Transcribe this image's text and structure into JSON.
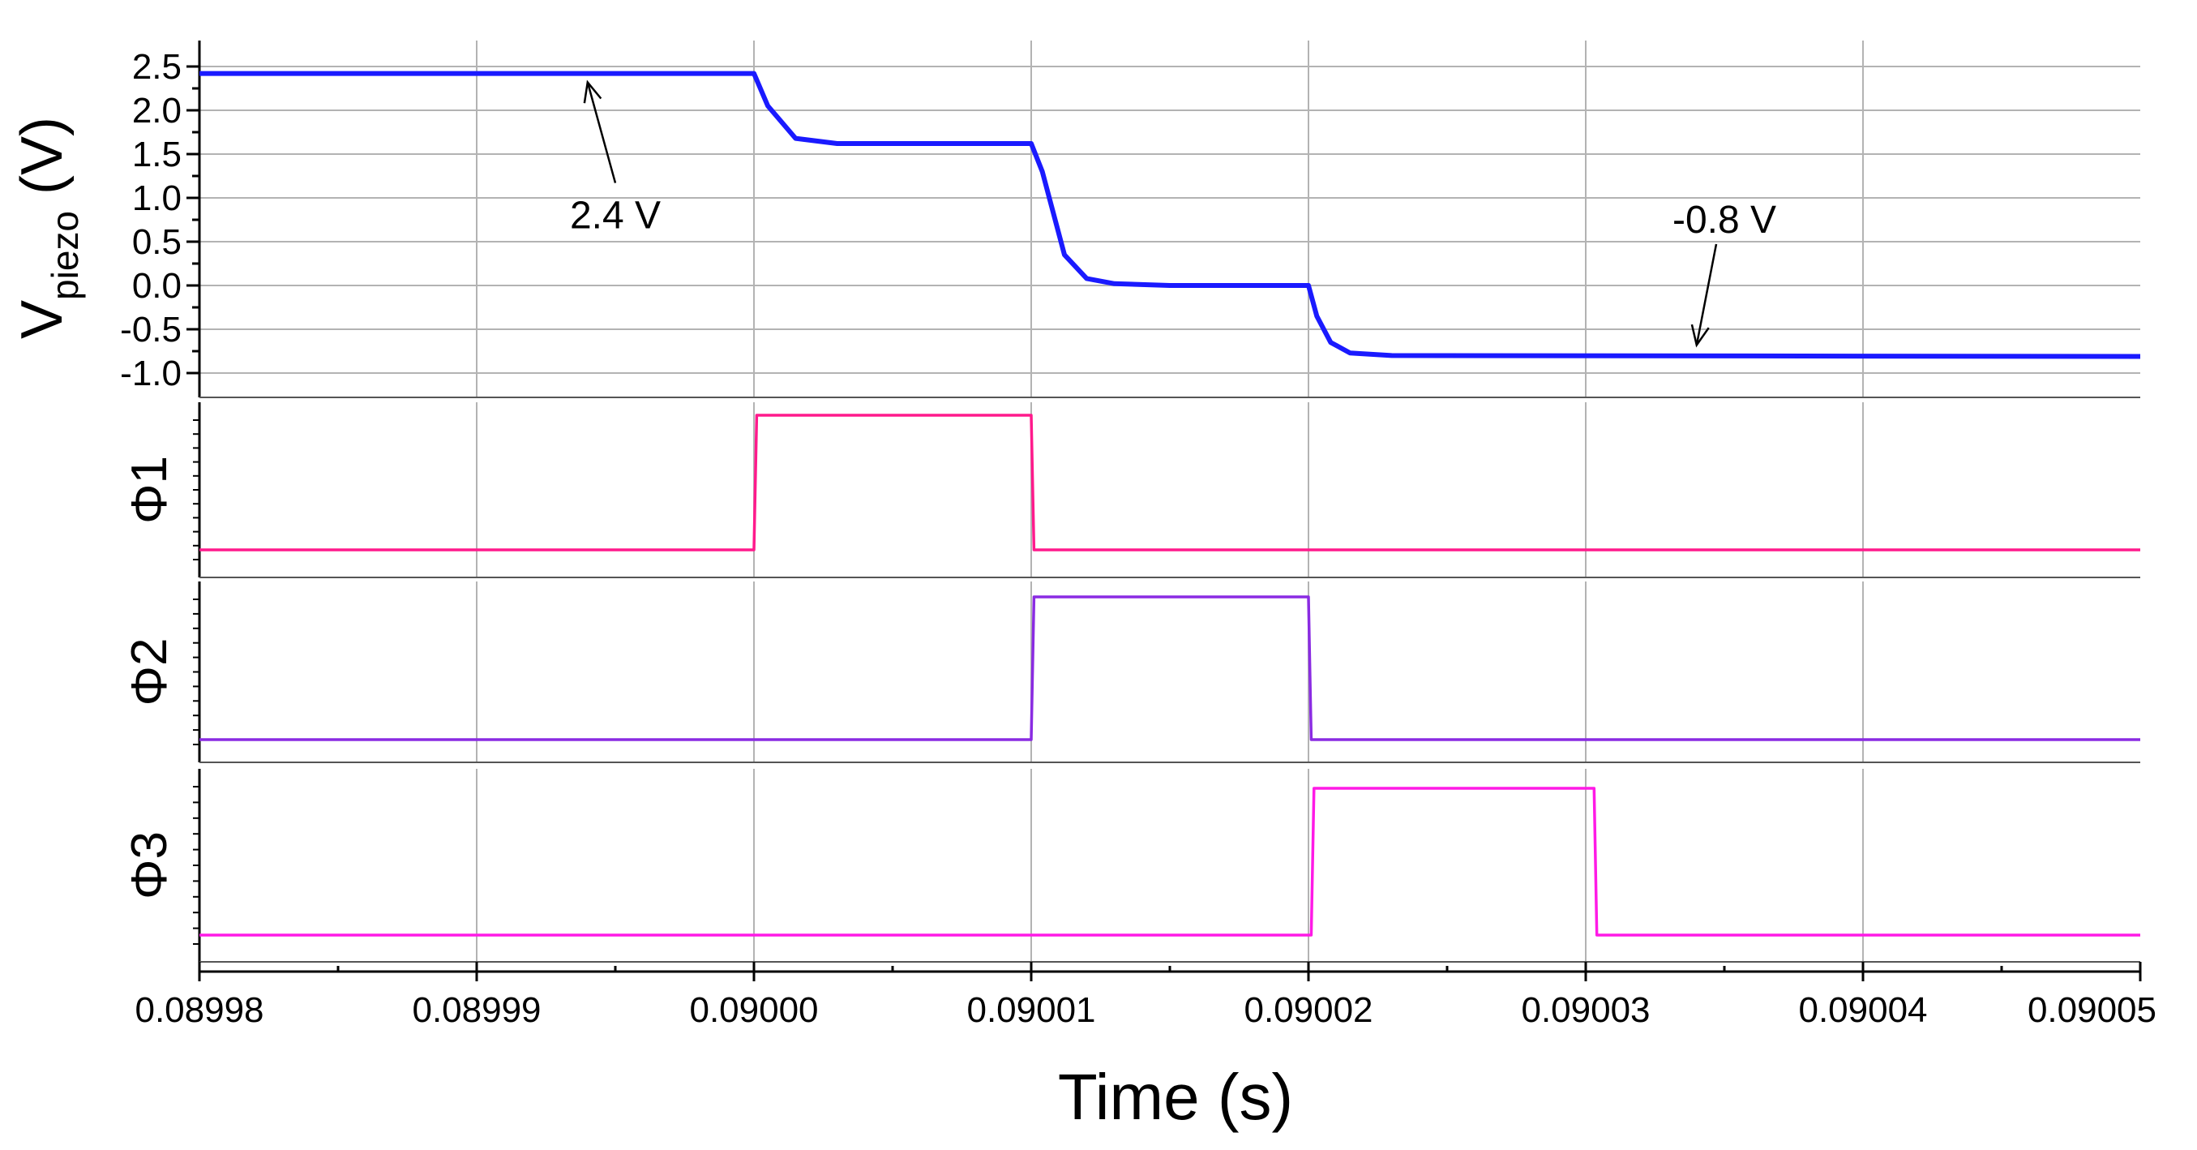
{
  "chart_data": {
    "type": "line",
    "xlabel": "Time (s)",
    "x_ticks": [
      "0.08998",
      "0.08999",
      "0.09000",
      "0.09001",
      "0.09002",
      "0.09003",
      "0.09004",
      "0.09005"
    ],
    "xlim": [
      0.08998,
      0.09005
    ],
    "grid": true,
    "panels": [
      {
        "id": "vpiezo",
        "ylabel_main": "V",
        "ylabel_sub": "piezo",
        "ylabel_unit": " (V)",
        "ylim": [
          -1.0,
          2.5
        ],
        "y_ticks": [
          "2.5",
          "2.0",
          "1.5",
          "1.0",
          "0.5",
          "0.0",
          "-0.5",
          "-1.0"
        ],
        "y_tick_values": [
          2.5,
          2.0,
          1.5,
          1.0,
          0.5,
          0.0,
          -0.5,
          -1.0
        ],
        "series": [
          {
            "color": "#1a1aff",
            "x": [
              0.08998,
              0.09,
              0.0900005,
              0.0900015,
              0.090003,
              0.09001,
              0.0900104,
              0.0900112,
              0.090012,
              0.090013,
              0.090015,
              0.09002,
              0.0900203,
              0.0900208,
              0.0900215,
              0.090023,
              0.09005
            ],
            "y": [
              2.42,
              2.42,
              2.05,
              1.68,
              1.62,
              1.62,
              1.3,
              0.35,
              0.08,
              0.02,
              0.0,
              0.0,
              -0.35,
              -0.65,
              -0.77,
              -0.8,
              -0.81
            ]
          }
        ],
        "annotations": [
          {
            "text": "2.4 V",
            "x": 0.089995,
            "y": 0.8,
            "arrow_to": [
              0.089994,
              2.32
            ]
          },
          {
            "text": "-0.8 V",
            "x": 0.090035,
            "y": 0.75,
            "arrow_to": [
              0.090034,
              -0.68
            ]
          }
        ]
      },
      {
        "id": "phi1",
        "ylabel": "Φ1",
        "ylim": [
          0,
          1
        ],
        "series": [
          {
            "color": "#ff1a8c",
            "x": [
              0.08998,
              0.09,
              0.0900001,
              0.09001,
              0.0900101,
              0.09005
            ],
            "y": [
              0,
              0,
              1,
              1,
              0,
              0
            ]
          }
        ]
      },
      {
        "id": "phi2",
        "ylabel": "Φ2",
        "ylim": [
          0,
          1
        ],
        "series": [
          {
            "color": "#8a2be2",
            "x": [
              0.08998,
              0.09001,
              0.0900101,
              0.09002,
              0.0900201,
              0.09005
            ],
            "y": [
              0,
              0,
              1,
              1,
              0,
              0
            ]
          }
        ]
      },
      {
        "id": "phi3",
        "ylabel": "Φ3",
        "ylim": [
          0,
          1
        ],
        "series": [
          {
            "color": "#ff1ae6",
            "x": [
              0.08998,
              0.0900201,
              0.0900202,
              0.0900303,
              0.0900304,
              0.09005
            ],
            "y": [
              0,
              0,
              1,
              1,
              0,
              0
            ]
          }
        ]
      }
    ]
  }
}
